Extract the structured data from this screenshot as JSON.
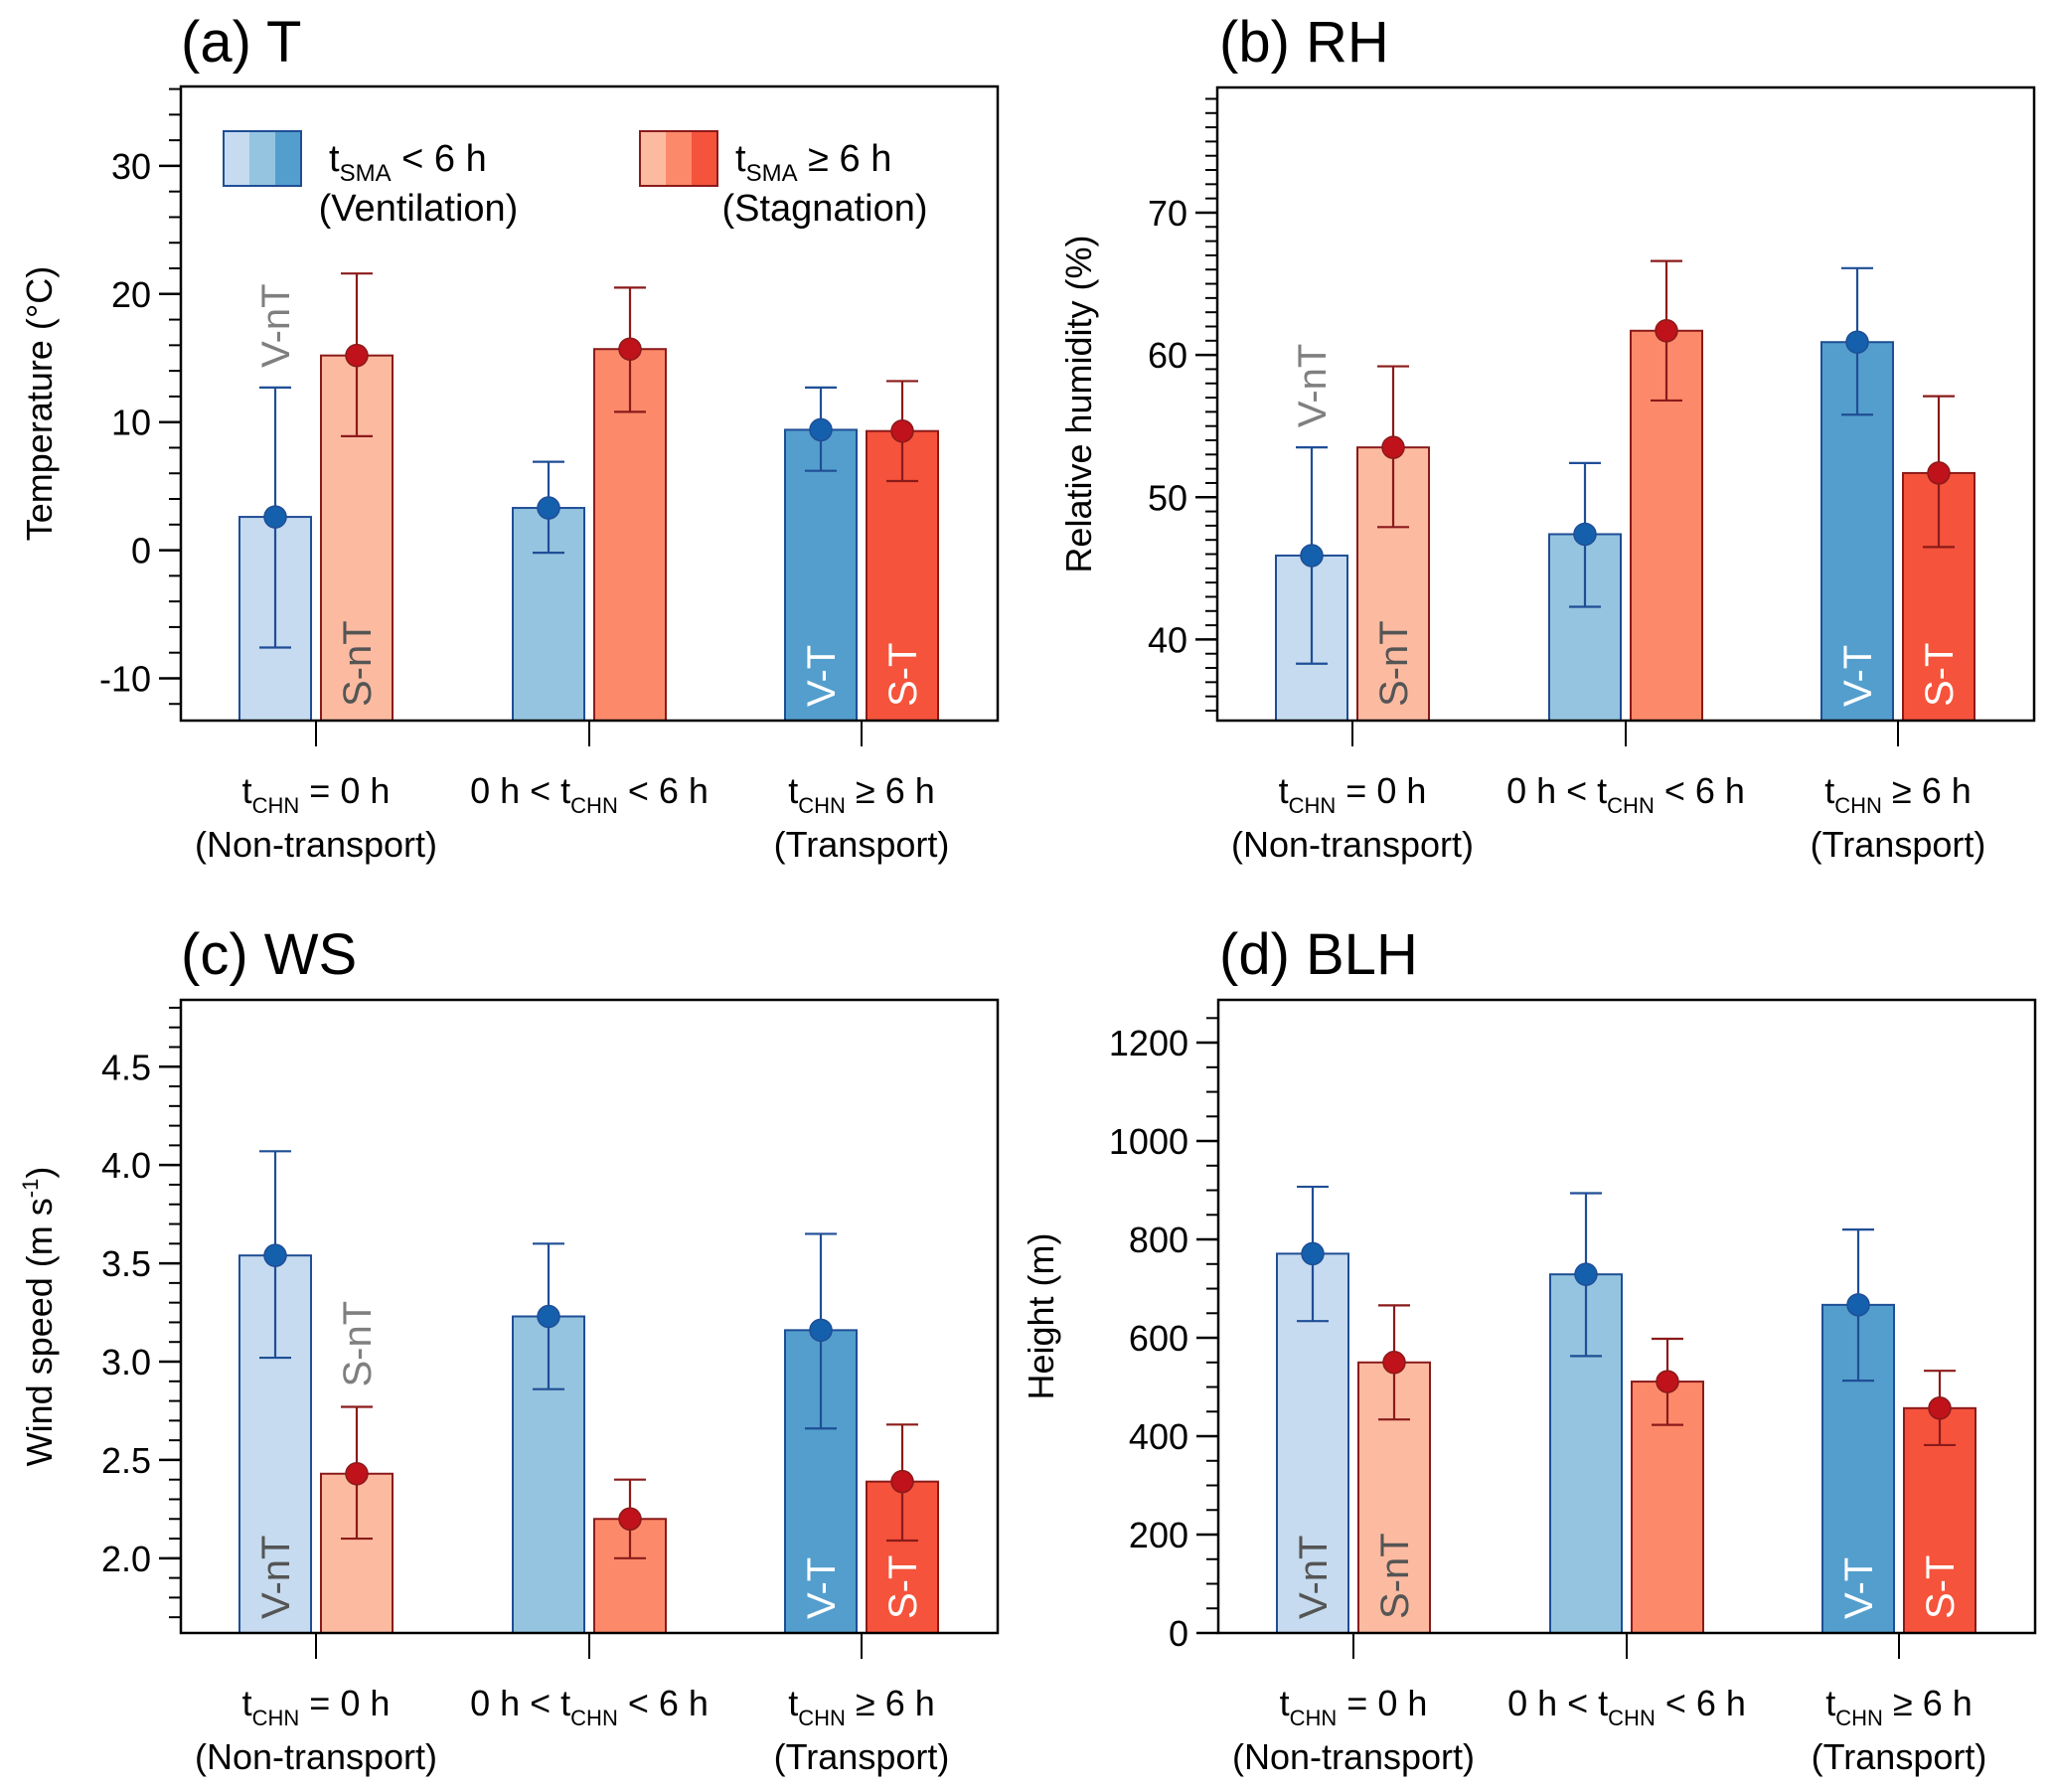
{
  "figure": {
    "legend": {
      "ventilation": {
        "label_main": "t",
        "label_sub": "SMA",
        "label_rest": " < 6 h",
        "label_line2": "(Ventilation)",
        "swatch_colors": [
          "#c6dbef",
          "#94c4df",
          "#539ecd"
        ],
        "edge_color": "#1f4e96"
      },
      "stagnation": {
        "label_main": "t",
        "label_sub": "SMA",
        "label_rest": " ≥ 6 h",
        "label_line2": "(Stagnation)",
        "swatch_colors": [
          "#fcbba1",
          "#fc8a6a",
          "#f5533b"
        ],
        "edge_color": "#8b1a1a"
      }
    },
    "colors": {
      "ventilation_bars": [
        "#c6dbef",
        "#94c4df",
        "#539ecd"
      ],
      "stagnation_bars": [
        "#fcbba1",
        "#fc8a6a",
        "#f5533b"
      ],
      "ventilation_edge": "#1f4e96",
      "stagnation_edge": "#8b1a1a",
      "ventilation_marker": "#1560ad",
      "stagnation_marker": "#c0121b",
      "tag_gray": "#7f7f7f",
      "tag_dark": "#555555",
      "tag_white": "#ffffff"
    },
    "categories": [
      {
        "pre": "",
        "main": "t",
        "sub": "CHN",
        "post": " = 0 h",
        "line2": "(Non-transport)"
      },
      {
        "pre": "0 h < ",
        "main": "t",
        "sub": "CHN",
        "post": " < 6 h",
        "line2": ""
      },
      {
        "pre": "",
        "main": "t",
        "sub": "CHN",
        "post": " ≥ 6 h",
        "line2": "(Transport)"
      }
    ]
  },
  "chart_data": [
    {
      "type": "bar",
      "panel": "a",
      "title": "(a) T",
      "ylabel": "Temperature (°C)",
      "xlabel": "",
      "ylim": [
        -13.3,
        36.2
      ],
      "yticks": [
        -10,
        0,
        10,
        20,
        30
      ],
      "ytick_labels": [
        "-10",
        "0",
        "10",
        "20",
        "30"
      ],
      "minor_step": 2,
      "legend": "top",
      "categories": [
        "tCHN = 0 h (Non-transport)",
        "0 h < tCHN < 6 h",
        "tCHN ≥ 6 h (Transport)"
      ],
      "series": [
        {
          "name": "tSMA < 6 h (Ventilation)",
          "values": [
            2.6,
            3.3,
            9.4
          ],
          "err_low": [
            -7.6,
            -0.2,
            6.2
          ],
          "err_high": [
            12.7,
            6.9,
            12.7
          ]
        },
        {
          "name": "tSMA ≥ 6 h (Stagnation)",
          "values": [
            15.2,
            15.7,
            9.3
          ],
          "err_low": [
            8.9,
            10.8,
            5.4
          ],
          "err_high": [
            21.6,
            20.5,
            13.2
          ]
        }
      ],
      "annotations": [
        {
          "text": "V-nT",
          "series": 0,
          "category": 0,
          "position": "above",
          "color": "gray"
        },
        {
          "text": "S-nT",
          "series": 1,
          "category": 0,
          "position": "inside",
          "color": "dark"
        },
        {
          "text": "V-T",
          "series": 0,
          "category": 2,
          "position": "inside",
          "color": "white"
        },
        {
          "text": "S-T",
          "series": 1,
          "category": 2,
          "position": "inside",
          "color": "white"
        }
      ]
    },
    {
      "type": "bar",
      "panel": "b",
      "title": "(b) RH",
      "ylabel": "Relative humidity (%)",
      "xlabel": "",
      "ylim": [
        34.3,
        78.8
      ],
      "yticks": [
        40,
        50,
        60,
        70
      ],
      "ytick_labels": [
        "40",
        "50",
        "60",
        "70"
      ],
      "minor_step": 1,
      "legend": "none",
      "categories": [
        "tCHN = 0 h (Non-transport)",
        "0 h < tCHN < 6 h",
        "tCHN ≥ 6 h (Transport)"
      ],
      "series": [
        {
          "name": "tSMA < 6 h (Ventilation)",
          "values": [
            45.9,
            47.4,
            60.9
          ],
          "err_low": [
            38.3,
            42.3,
            55.8
          ],
          "err_high": [
            53.5,
            52.4,
            66.1
          ]
        },
        {
          "name": "tSMA ≥ 6 h (Stagnation)",
          "values": [
            53.5,
            61.7,
            51.7
          ],
          "err_low": [
            47.9,
            56.8,
            46.5
          ],
          "err_high": [
            59.2,
            66.6,
            57.1
          ]
        }
      ],
      "annotations": [
        {
          "text": "V-nT",
          "series": 0,
          "category": 0,
          "position": "above",
          "color": "gray"
        },
        {
          "text": "S-nT",
          "series": 1,
          "category": 0,
          "position": "inside",
          "color": "dark"
        },
        {
          "text": "V-T",
          "series": 0,
          "category": 2,
          "position": "inside",
          "color": "white"
        },
        {
          "text": "S-T",
          "series": 1,
          "category": 2,
          "position": "inside",
          "color": "white"
        }
      ]
    },
    {
      "type": "bar",
      "panel": "c",
      "title": "(c) WS",
      "ylabel": "Wind speed (m s-1)",
      "ylabel_main": "Wind speed (m s",
      "ylabel_sup": "-1",
      "ylabel_end": ")",
      "xlabel": "",
      "ylim": [
        1.62,
        4.84
      ],
      "yticks": [
        2.0,
        2.5,
        3.0,
        3.5,
        4.0,
        4.5
      ],
      "ytick_labels": [
        "2.0",
        "2.5",
        "3.0",
        "3.5",
        "4.0",
        "4.5"
      ],
      "minor_step": 0.1,
      "legend": "none",
      "categories": [
        "tCHN = 0 h (Non-transport)",
        "0 h < tCHN < 6 h",
        "tCHN ≥ 6 h (Transport)"
      ],
      "series": [
        {
          "name": "tSMA < 6 h (Ventilation)",
          "values": [
            3.54,
            3.23,
            3.16
          ],
          "err_low": [
            3.02,
            2.86,
            2.66
          ],
          "err_high": [
            4.07,
            3.6,
            3.65
          ]
        },
        {
          "name": "tSMA ≥ 6 h (Stagnation)",
          "values": [
            2.43,
            2.2,
            2.39
          ],
          "err_low": [
            2.1,
            2.0,
            2.09
          ],
          "err_high": [
            2.77,
            2.4,
            2.68
          ]
        }
      ],
      "annotations": [
        {
          "text": "V-nT",
          "series": 0,
          "category": 0,
          "position": "inside",
          "color": "dark"
        },
        {
          "text": "S-nT",
          "series": 1,
          "category": 0,
          "position": "above",
          "color": "gray"
        },
        {
          "text": "V-T",
          "series": 0,
          "category": 2,
          "position": "inside",
          "color": "white"
        },
        {
          "text": "S-T",
          "series": 1,
          "category": 2,
          "position": "inside",
          "color": "white"
        }
      ]
    },
    {
      "type": "bar",
      "panel": "d",
      "title": "(d) BLH",
      "ylabel": "Height (m)",
      "xlabel": "",
      "ylim": [
        0,
        1287
      ],
      "yticks": [
        0,
        200,
        400,
        600,
        800,
        1000,
        1200
      ],
      "ytick_labels": [
        "0",
        "200",
        "400",
        "600",
        "800",
        "1000",
        "1200"
      ],
      "minor_step": 50,
      "legend": "none",
      "categories": [
        "tCHN = 0 h (Non-transport)",
        "0 h < tCHN < 6 h",
        "tCHN ≥ 6 h (Transport)"
      ],
      "series": [
        {
          "name": "tSMA < 6 h (Ventilation)",
          "values": [
            771,
            729,
            667
          ],
          "err_low": [
            634,
            563,
            513
          ],
          "err_high": [
            907,
            894,
            820
          ]
        },
        {
          "name": "tSMA ≥ 6 h (Stagnation)",
          "values": [
            550,
            511,
            457
          ],
          "err_low": [
            434,
            423,
            382
          ],
          "err_high": [
            666,
            598,
            533
          ]
        }
      ],
      "annotations": [
        {
          "text": "V-nT",
          "series": 0,
          "category": 0,
          "position": "inside",
          "color": "dark"
        },
        {
          "text": "S-nT",
          "series": 1,
          "category": 0,
          "position": "inside",
          "color": "dark"
        },
        {
          "text": "V-T",
          "series": 0,
          "category": 2,
          "position": "inside",
          "color": "white"
        },
        {
          "text": "S-T",
          "series": 1,
          "category": 2,
          "position": "inside",
          "color": "white"
        }
      ]
    }
  ]
}
